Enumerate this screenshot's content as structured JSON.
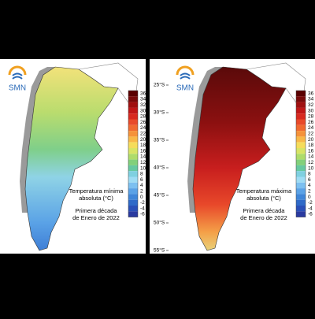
{
  "panels": [
    {
      "logo": "SMN",
      "title": [
        "Temperatura mínima",
        "absoluta (°C)"
      ],
      "period": [
        "Primera década",
        "de Enero de 2022"
      ],
      "colorbar_ticks": [
        36,
        34,
        32,
        30,
        28,
        26,
        24,
        22,
        20,
        18,
        16,
        14,
        12,
        10,
        8,
        6,
        4,
        2,
        0,
        -2,
        -4,
        -6
      ]
    },
    {
      "logo": "SMN",
      "title": [
        "Temperatura máxima",
        "absoluta (°C)"
      ],
      "period": [
        "Primera década",
        "de Enero de 2022"
      ],
      "colorbar_ticks": [
        36,
        34,
        32,
        30,
        28,
        26,
        24,
        22,
        20,
        18,
        16,
        14,
        12,
        10,
        8,
        6,
        4,
        2,
        0,
        -2,
        -4,
        -6
      ],
      "latitude_labels": [
        "25°S",
        "30°S",
        "35°S",
        "40°S",
        "45°S",
        "50°S",
        "55°S"
      ]
    }
  ]
}
